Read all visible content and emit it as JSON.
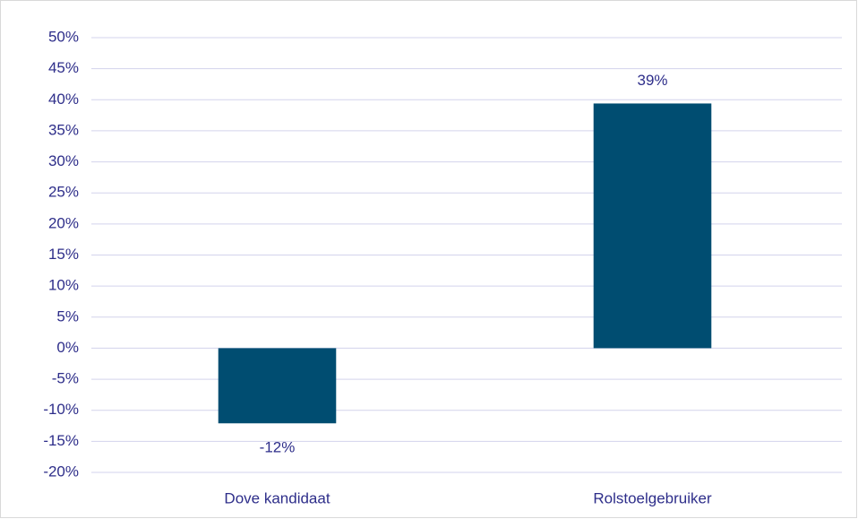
{
  "chart_data": {
    "type": "bar",
    "categories": [
      "Dove kandidaat",
      "Rolstoelgebruiker"
    ],
    "values": [
      -12.1,
      39.4
    ],
    "value_labels": [
      "-12%",
      "39%"
    ],
    "color": "#004d71",
    "ylim": [
      -20,
      50
    ],
    "yticks": [
      {
        "value": -20,
        "label": "-20%"
      },
      {
        "value": -15,
        "label": "-15%"
      },
      {
        "value": -10,
        "label": "-10%"
      },
      {
        "value": -5,
        "label": "-5%"
      },
      {
        "value": 0,
        "label": "0%"
      },
      {
        "value": 5,
        "label": "5%"
      },
      {
        "value": 10,
        "label": "10%"
      },
      {
        "value": 15,
        "label": "15%"
      },
      {
        "value": 20,
        "label": "20%"
      },
      {
        "value": 25,
        "label": "25%"
      },
      {
        "value": 30,
        "label": "30%"
      },
      {
        "value": 35,
        "label": "35%"
      },
      {
        "value": 40,
        "label": "40%"
      },
      {
        "value": 45,
        "label": "45%"
      },
      {
        "value": 50,
        "label": "50%"
      }
    ],
    "grid": true
  }
}
